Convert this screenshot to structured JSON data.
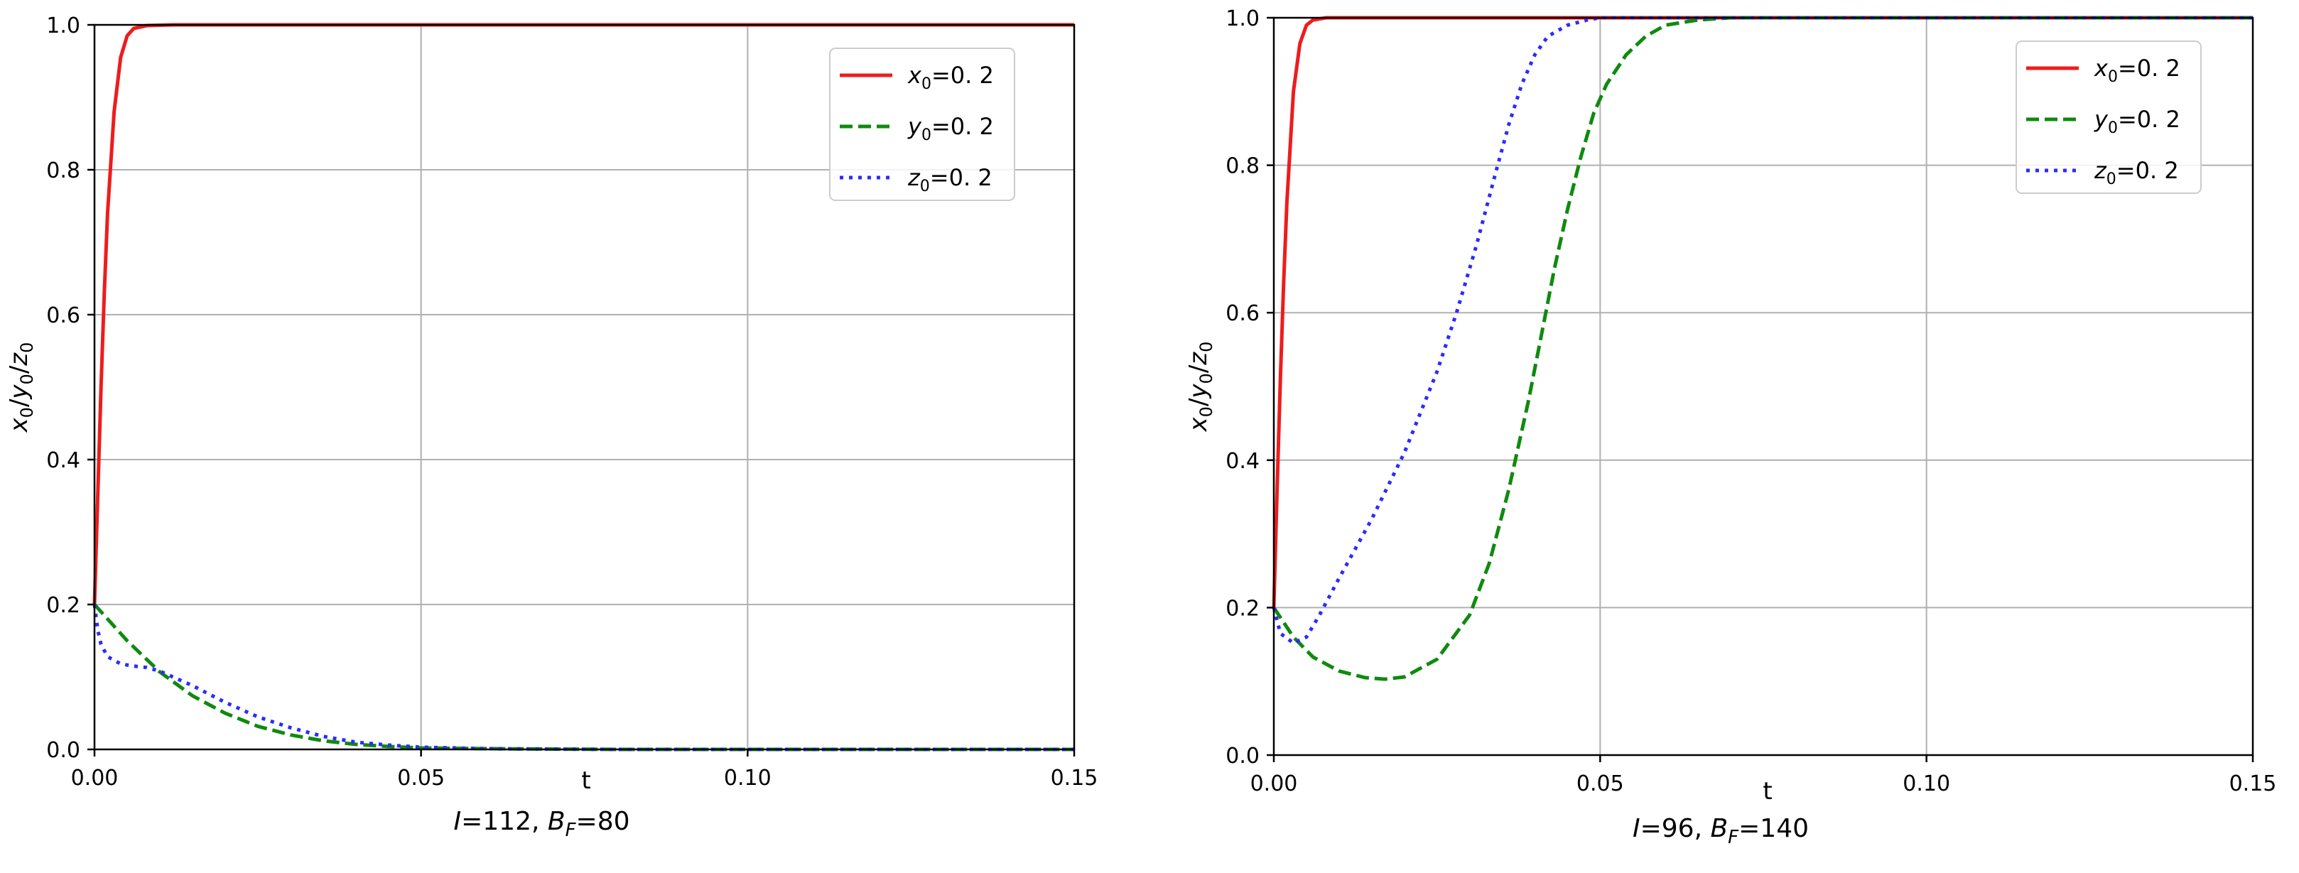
{
  "chart_data": [
    {
      "type": "line",
      "title": "",
      "caption": "I=112, B_F=80",
      "caption_parts": {
        "pre": "I",
        "eq1": "=112, ",
        "b": "B",
        "sub": "F",
        "eq2": "=80"
      },
      "xlabel": "t",
      "ylabel": "x0/y0/z0",
      "xlim": [
        0,
        0.15
      ],
      "ylim": [
        0,
        1.0
      ],
      "xticks": [
        "0.00",
        "0.05",
        "0.10",
        "0.15"
      ],
      "yticks": [
        "0.0",
        "0.2",
        "0.4",
        "0.6",
        "0.8",
        "1.0"
      ],
      "grid": true,
      "legend_position": "top-right",
      "series": [
        {
          "name": "x0=0.2",
          "var": "x",
          "sub": "0",
          "eqtext": "=0. 2",
          "color": "#ee1c1c",
          "style": "solid",
          "x": [
            0,
            0.0005,
            0.001,
            0.0015,
            0.002,
            0.003,
            0.004,
            0.005,
            0.006,
            0.008,
            0.012,
            0.02,
            0.05,
            0.1,
            0.15
          ],
          "y": [
            0.2,
            0.35,
            0.5,
            0.63,
            0.74,
            0.88,
            0.955,
            0.985,
            0.995,
            0.999,
            1.0,
            1.0,
            1.0,
            1.0,
            1.0
          ]
        },
        {
          "name": "y0=0.2",
          "var": "y",
          "sub": "0",
          "eqtext": "=0. 2",
          "color": "#0f8a0f",
          "style": "dashed",
          "x": [
            0,
            0.005,
            0.01,
            0.015,
            0.02,
            0.025,
            0.03,
            0.035,
            0.04,
            0.045,
            0.05,
            0.06,
            0.08,
            0.1,
            0.15
          ],
          "y": [
            0.2,
            0.15,
            0.107,
            0.074,
            0.05,
            0.032,
            0.02,
            0.012,
            0.007,
            0.004,
            0.002,
            0.001,
            0.0,
            0.0,
            0.0
          ]
        },
        {
          "name": "z0=0.2",
          "var": "z",
          "sub": "0",
          "eqtext": "=0. 2",
          "color": "#2b2bff",
          "style": "dotted",
          "x": [
            0,
            0.0005,
            0.001,
            0.002,
            0.004,
            0.006,
            0.008,
            0.01,
            0.015,
            0.02,
            0.025,
            0.03,
            0.035,
            0.04,
            0.045,
            0.05,
            0.06,
            0.08,
            0.1,
            0.15
          ],
          "y": [
            0.2,
            0.165,
            0.145,
            0.128,
            0.118,
            0.115,
            0.113,
            0.108,
            0.088,
            0.065,
            0.045,
            0.03,
            0.018,
            0.01,
            0.006,
            0.003,
            0.001,
            0.0,
            0.0,
            0.0
          ]
        }
      ]
    },
    {
      "type": "line",
      "title": "",
      "caption": "I=96, B_F=140",
      "caption_parts": {
        "pre": "I",
        "eq1": "=96, ",
        "b": "B",
        "sub": "F",
        "eq2": "=140"
      },
      "xlabel": "t",
      "ylabel": "x0/y0/z0",
      "xlim": [
        0,
        0.15
      ],
      "ylim": [
        0,
        1.0
      ],
      "xticks": [
        "0.00",
        "0.05",
        "0.10",
        "0.15"
      ],
      "yticks": [
        "0.0",
        "0.2",
        "0.4",
        "0.6",
        "0.8",
        "1.0"
      ],
      "grid": true,
      "legend_position": "top-right",
      "series": [
        {
          "name": "x0=0.2",
          "var": "x",
          "sub": "0",
          "eqtext": "=0. 2",
          "color": "#ee1c1c",
          "style": "solid",
          "x": [
            0,
            0.0005,
            0.001,
            0.0015,
            0.002,
            0.003,
            0.004,
            0.005,
            0.006,
            0.008,
            0.012,
            0.02,
            0.05,
            0.1,
            0.15
          ],
          "y": [
            0.2,
            0.36,
            0.51,
            0.64,
            0.75,
            0.9,
            0.965,
            0.99,
            0.997,
            1.0,
            1.0,
            1.0,
            1.0,
            1.0,
            1.0
          ]
        },
        {
          "name": "y0=0.2",
          "var": "y",
          "sub": "0",
          "eqtext": "=0. 2",
          "color": "#0f8a0f",
          "style": "dashed",
          "x": [
            0,
            0.003,
            0.006,
            0.01,
            0.014,
            0.017,
            0.02,
            0.025,
            0.03,
            0.033,
            0.036,
            0.039,
            0.041,
            0.043,
            0.045,
            0.047,
            0.049,
            0.051,
            0.054,
            0.057,
            0.06,
            0.065,
            0.07,
            0.08,
            0.1,
            0.15
          ],
          "y": [
            0.2,
            0.16,
            0.133,
            0.114,
            0.105,
            0.103,
            0.106,
            0.13,
            0.19,
            0.26,
            0.36,
            0.48,
            0.57,
            0.66,
            0.74,
            0.81,
            0.87,
            0.91,
            0.95,
            0.975,
            0.99,
            0.997,
            1.0,
            1.0,
            1.0,
            1.0
          ]
        },
        {
          "name": "z0=0.2",
          "var": "z",
          "sub": "0",
          "eqtext": "=0. 2",
          "color": "#2b2bff",
          "style": "dotted",
          "x": [
            0,
            0.001,
            0.003,
            0.005,
            0.007,
            0.01,
            0.015,
            0.02,
            0.025,
            0.028,
            0.031,
            0.034,
            0.036,
            0.038,
            0.04,
            0.042,
            0.045,
            0.048,
            0.05,
            0.055,
            0.06,
            0.08,
            0.1,
            0.15
          ],
          "y": [
            0.2,
            0.165,
            0.152,
            0.16,
            0.19,
            0.24,
            0.32,
            0.41,
            0.52,
            0.6,
            0.69,
            0.79,
            0.855,
            0.91,
            0.95,
            0.975,
            0.99,
            0.997,
            1.0,
            1.0,
            1.0,
            1.0,
            1.0,
            1.0
          ]
        }
      ]
    }
  ]
}
